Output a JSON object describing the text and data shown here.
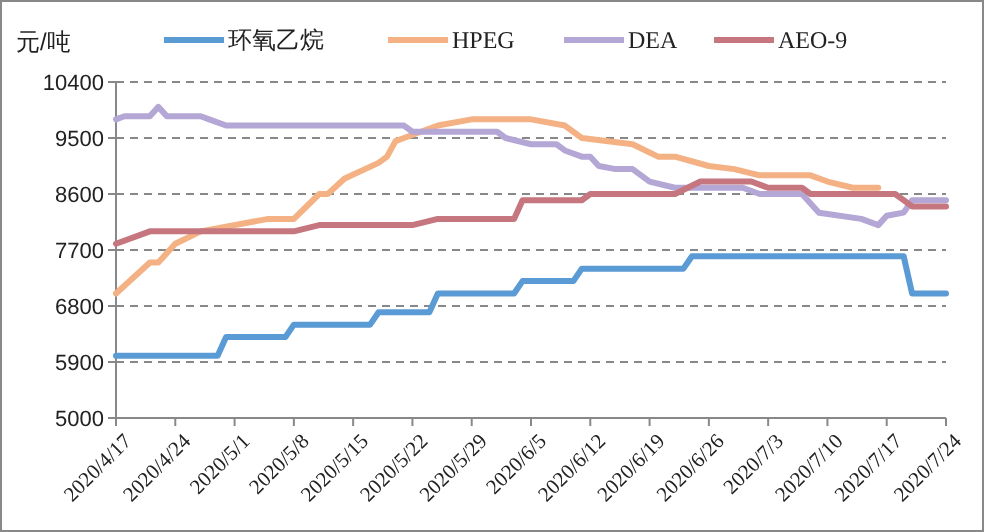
{
  "chart_data": {
    "type": "line",
    "ylabel": "元/吨",
    "ylim": [
      5000,
      10400
    ],
    "yticks": [
      5000,
      5900,
      6800,
      7700,
      8600,
      9500,
      10400
    ],
    "xlim": [
      "2020-04-17",
      "2020-07-24"
    ],
    "xticks": [
      {
        "value": "2020-04-17",
        "label": "2020/4/17"
      },
      {
        "value": "2020-04-24",
        "label": "2020/4/24"
      },
      {
        "value": "2020-05-01",
        "label": "2020/5/1"
      },
      {
        "value": "2020-05-08",
        "label": "2020/5/8"
      },
      {
        "value": "2020-05-15",
        "label": "2020/5/15"
      },
      {
        "value": "2020-05-22",
        "label": "2020/5/22"
      },
      {
        "value": "2020-05-29",
        "label": "2020/5/29"
      },
      {
        "value": "2020-06-05",
        "label": "2020/6/5"
      },
      {
        "value": "2020-06-12",
        "label": "2020/6/12"
      },
      {
        "value": "2020-06-19",
        "label": "2020/6/19"
      },
      {
        "value": "2020-06-26",
        "label": "2020/6/26"
      },
      {
        "value": "2020-07-03",
        "label": "2020/7/3"
      },
      {
        "value": "2020-07-10",
        "label": "2020/7/10"
      },
      {
        "value": "2020-07-17",
        "label": "2020/7/17"
      },
      {
        "value": "2020-07-24",
        "label": "2020/7/24"
      }
    ],
    "grid": "y",
    "legend": "top",
    "marker": "none",
    "line_style": "solid",
    "series": [
      {
        "name": "环氧乙烷",
        "color": "#5b9bd5",
        "x": [
          "2020-04-17",
          "2020-04-29",
          "2020-04-30",
          "2020-05-07",
          "2020-05-08",
          "2020-05-17",
          "2020-05-18",
          "2020-05-24",
          "2020-05-25",
          "2020-06-03",
          "2020-06-04",
          "2020-06-10",
          "2020-06-11",
          "2020-06-23",
          "2020-06-24",
          "2020-07-19",
          "2020-07-20",
          "2020-07-24"
        ],
        "values": [
          6000,
          6000,
          6300,
          6300,
          6500,
          6500,
          6700,
          6700,
          7000,
          7000,
          7200,
          7200,
          7400,
          7400,
          7600,
          7600,
          7000,
          7000
        ]
      },
      {
        "name": "HPEG",
        "color": "#f4b183",
        "x": [
          "2020-04-17",
          "2020-04-21",
          "2020-04-22",
          "2020-04-24",
          "2020-04-27",
          "2020-05-05",
          "2020-05-08",
          "2020-05-11",
          "2020-05-12",
          "2020-05-14",
          "2020-05-18",
          "2020-05-19",
          "2020-05-20",
          "2020-05-21",
          "2020-05-25",
          "2020-05-29",
          "2020-06-05",
          "2020-06-09",
          "2020-06-11",
          "2020-06-17",
          "2020-06-20",
          "2020-06-22",
          "2020-06-26",
          "2020-06-29",
          "2020-07-02",
          "2020-07-08",
          "2020-07-10",
          "2020-07-13",
          "2020-07-16"
        ],
        "values": [
          7000,
          7500,
          7500,
          7800,
          8000,
          8200,
          8200,
          8600,
          8600,
          8850,
          9100,
          9200,
          9450,
          9500,
          9700,
          9800,
          9800,
          9700,
          9500,
          9400,
          9200,
          9200,
          9050,
          9000,
          8900,
          8900,
          8800,
          8700,
          8700
        ]
      },
      {
        "name": "DEA",
        "color": "#b4a7d6",
        "x": [
          "2020-04-17",
          "2020-04-18",
          "2020-04-21",
          "2020-04-22",
          "2020-04-23",
          "2020-04-27",
          "2020-04-28",
          "2020-04-30",
          "2020-05-21",
          "2020-05-22",
          "2020-06-01",
          "2020-06-02",
          "2020-06-05",
          "2020-06-08",
          "2020-06-09",
          "2020-06-11",
          "2020-06-12",
          "2020-06-13",
          "2020-06-15",
          "2020-06-17",
          "2020-06-19",
          "2020-06-22",
          "2020-06-30",
          "2020-07-02",
          "2020-07-07",
          "2020-07-09",
          "2020-07-14",
          "2020-07-16",
          "2020-07-17",
          "2020-07-19",
          "2020-07-20",
          "2020-07-24"
        ],
        "values": [
          9800,
          9850,
          9850,
          10000,
          9850,
          9850,
          9800,
          9700,
          9700,
          9600,
          9600,
          9500,
          9400,
          9400,
          9300,
          9200,
          9200,
          9050,
          9000,
          9000,
          8800,
          8700,
          8700,
          8600,
          8600,
          8300,
          8200,
          8100,
          8250,
          8300,
          8500,
          8500
        ]
      },
      {
        "name": "AEO-9",
        "color": "#c5767f",
        "x": [
          "2020-04-17",
          "2020-04-21",
          "2020-05-08",
          "2020-05-11",
          "2020-05-22",
          "2020-05-25",
          "2020-06-03",
          "2020-06-04",
          "2020-06-11",
          "2020-06-12",
          "2020-06-22",
          "2020-06-25",
          "2020-07-01",
          "2020-07-03",
          "2020-07-07",
          "2020-07-08",
          "2020-07-18",
          "2020-07-20",
          "2020-07-24"
        ],
        "values": [
          7800,
          8000,
          8000,
          8100,
          8100,
          8200,
          8200,
          8500,
          8500,
          8600,
          8600,
          8800,
          8800,
          8700,
          8700,
          8600,
          8600,
          8400,
          8400
        ]
      }
    ]
  }
}
